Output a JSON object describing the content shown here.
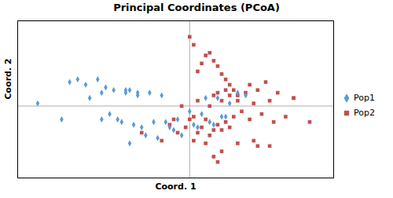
{
  "chart_data": {
    "type": "scatter",
    "title": "Principal Coordinates (PCoA)",
    "xlabel": "Coord. 1",
    "ylabel": "Coord. 2",
    "series": [
      {
        "name": "Pop1",
        "color": "#5B9BD5",
        "marker": "diamond",
        "x": [
          -0.38,
          -0.28,
          -0.26,
          -0.23,
          -0.21,
          -0.2,
          -0.19,
          -0.18,
          -0.17,
          -0.16,
          -0.15,
          -0.14,
          -0.13,
          -0.12,
          -0.11,
          -0.1,
          -0.09,
          -0.08,
          -0.07,
          -0.06,
          -0.05,
          -0.04,
          -0.03,
          -0.02,
          0.0,
          0.01,
          0.02,
          0.03,
          0.04,
          0.05,
          0.06,
          0.07,
          0.08,
          0.09,
          0.1,
          0.12,
          0.14,
          -0.32,
          -0.25,
          -0.22,
          -0.3,
          -0.16,
          -0.15,
          -0.13,
          -0.22
        ],
        "values": [
          0.01,
          0.1,
          0.08,
          0.1,
          0.07,
          -0.03,
          0.06,
          -0.05,
          -0.06,
          0.05,
          0.06,
          -0.07,
          0.05,
          -0.08,
          -0.11,
          0.05,
          -0.06,
          -0.12,
          0.04,
          -0.06,
          -0.08,
          -0.09,
          -0.05,
          -0.11,
          -0.02,
          -0.07,
          -0.08,
          -0.03,
          0.03,
          -0.06,
          -0.07,
          0.03,
          -0.04,
          -0.04,
          0.01,
          0.05,
          0.04,
          -0.05,
          0.03,
          -0.05,
          0.09,
          0.06,
          -0.14,
          0.04,
          0.05
        ]
      },
      {
        "name": "Pop2",
        "color": "#C0504D",
        "marker": "square",
        "x": [
          -0.07,
          -0.04,
          -0.03,
          -0.02,
          -0.01,
          0.0,
          0.01,
          0.01,
          0.02,
          0.02,
          0.03,
          0.04,
          0.04,
          0.05,
          0.05,
          0.06,
          0.06,
          0.07,
          0.07,
          0.08,
          0.08,
          0.09,
          0.09,
          0.1,
          0.1,
          0.11,
          0.12,
          0.13,
          0.14,
          0.15,
          0.15,
          0.16,
          0.17,
          0.18,
          0.19,
          0.2,
          0.22,
          0.24,
          0.26,
          0.3,
          0.02,
          0.03,
          0.04,
          0.01,
          0.0,
          0.05,
          0.06,
          0.07,
          0.08,
          0.09,
          0.1,
          0.11,
          0.12,
          0.06,
          0.07,
          0.08,
          0.12,
          0.16,
          0.2,
          0.26,
          0.21,
          0.17,
          -0.05,
          -0.12
        ],
        "values": [
          -0.13,
          -0.05,
          -0.1,
          0.0,
          -0.08,
          -0.05,
          -0.13,
          -0.04,
          -0.1,
          0.02,
          -0.08,
          -0.14,
          -0.05,
          -0.11,
          0.0,
          -0.09,
          0.04,
          -0.07,
          0.05,
          -0.09,
          0.02,
          -0.06,
          0.06,
          -0.08,
          0.04,
          -0.04,
          0.02,
          -0.02,
          0.05,
          -0.05,
          0.08,
          0.01,
          0.06,
          -0.03,
          0.09,
          0.02,
          0.05,
          -0.04,
          0.03,
          -0.06,
          0.13,
          0.16,
          0.19,
          0.23,
          0.26,
          0.2,
          0.17,
          0.15,
          0.12,
          0.1,
          0.08,
          0.06,
          0.04,
          -0.19,
          -0.21,
          -0.17,
          -0.14,
          -0.13,
          -0.15,
          0.03,
          -0.06,
          -0.15,
          -0.07,
          -0.1
        ]
      }
    ],
    "xlim": [
      -0.43,
      0.36
    ],
    "ylim": [
      -0.27,
      0.32
    ],
    "hlines": [
      0
    ],
    "vlines": [
      0
    ],
    "tick_labels": false,
    "legend": "right"
  }
}
